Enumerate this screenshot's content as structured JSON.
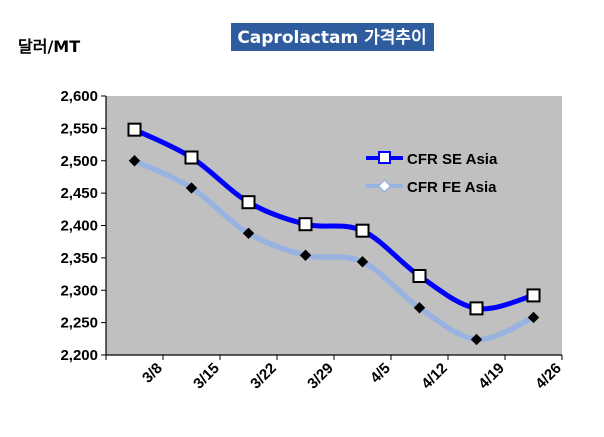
{
  "chart_data": {
    "type": "line",
    "title": "Caprolactam 가격추이",
    "ylabel": "달러/MT",
    "xlabel": "",
    "categories": [
      "3/8",
      "3/15",
      "3/22",
      "3/29",
      "4/5",
      "4/12",
      "4/19",
      "4/26"
    ],
    "ylim": [
      2200,
      2600
    ],
    "yticks": [
      2200,
      2250,
      2300,
      2350,
      2400,
      2450,
      2500,
      2550,
      2600
    ],
    "ytick_labels": [
      "2,200",
      "2,250",
      "2,300",
      "2,350",
      "2,400",
      "2,450",
      "2,500",
      "2,550",
      "2,600"
    ],
    "grid": false,
    "legend_position": "right",
    "series": [
      {
        "name": "CFR SE Asia",
        "values": [
          2548,
          2505,
          2436,
          2402,
          2392,
          2322,
          2272,
          2292
        ],
        "color": "#0000ff",
        "marker": "hollow-square"
      },
      {
        "name": "CFR FE Asia",
        "values": [
          2500,
          2458,
          2388,
          2354,
          2344,
          2273,
          2224,
          2258
        ],
        "color": "#99b3e0",
        "marker": "hollow-diamond"
      }
    ],
    "colors": {
      "plot_background": "#c0c0c0",
      "title_background": "#2e5c9e"
    }
  }
}
